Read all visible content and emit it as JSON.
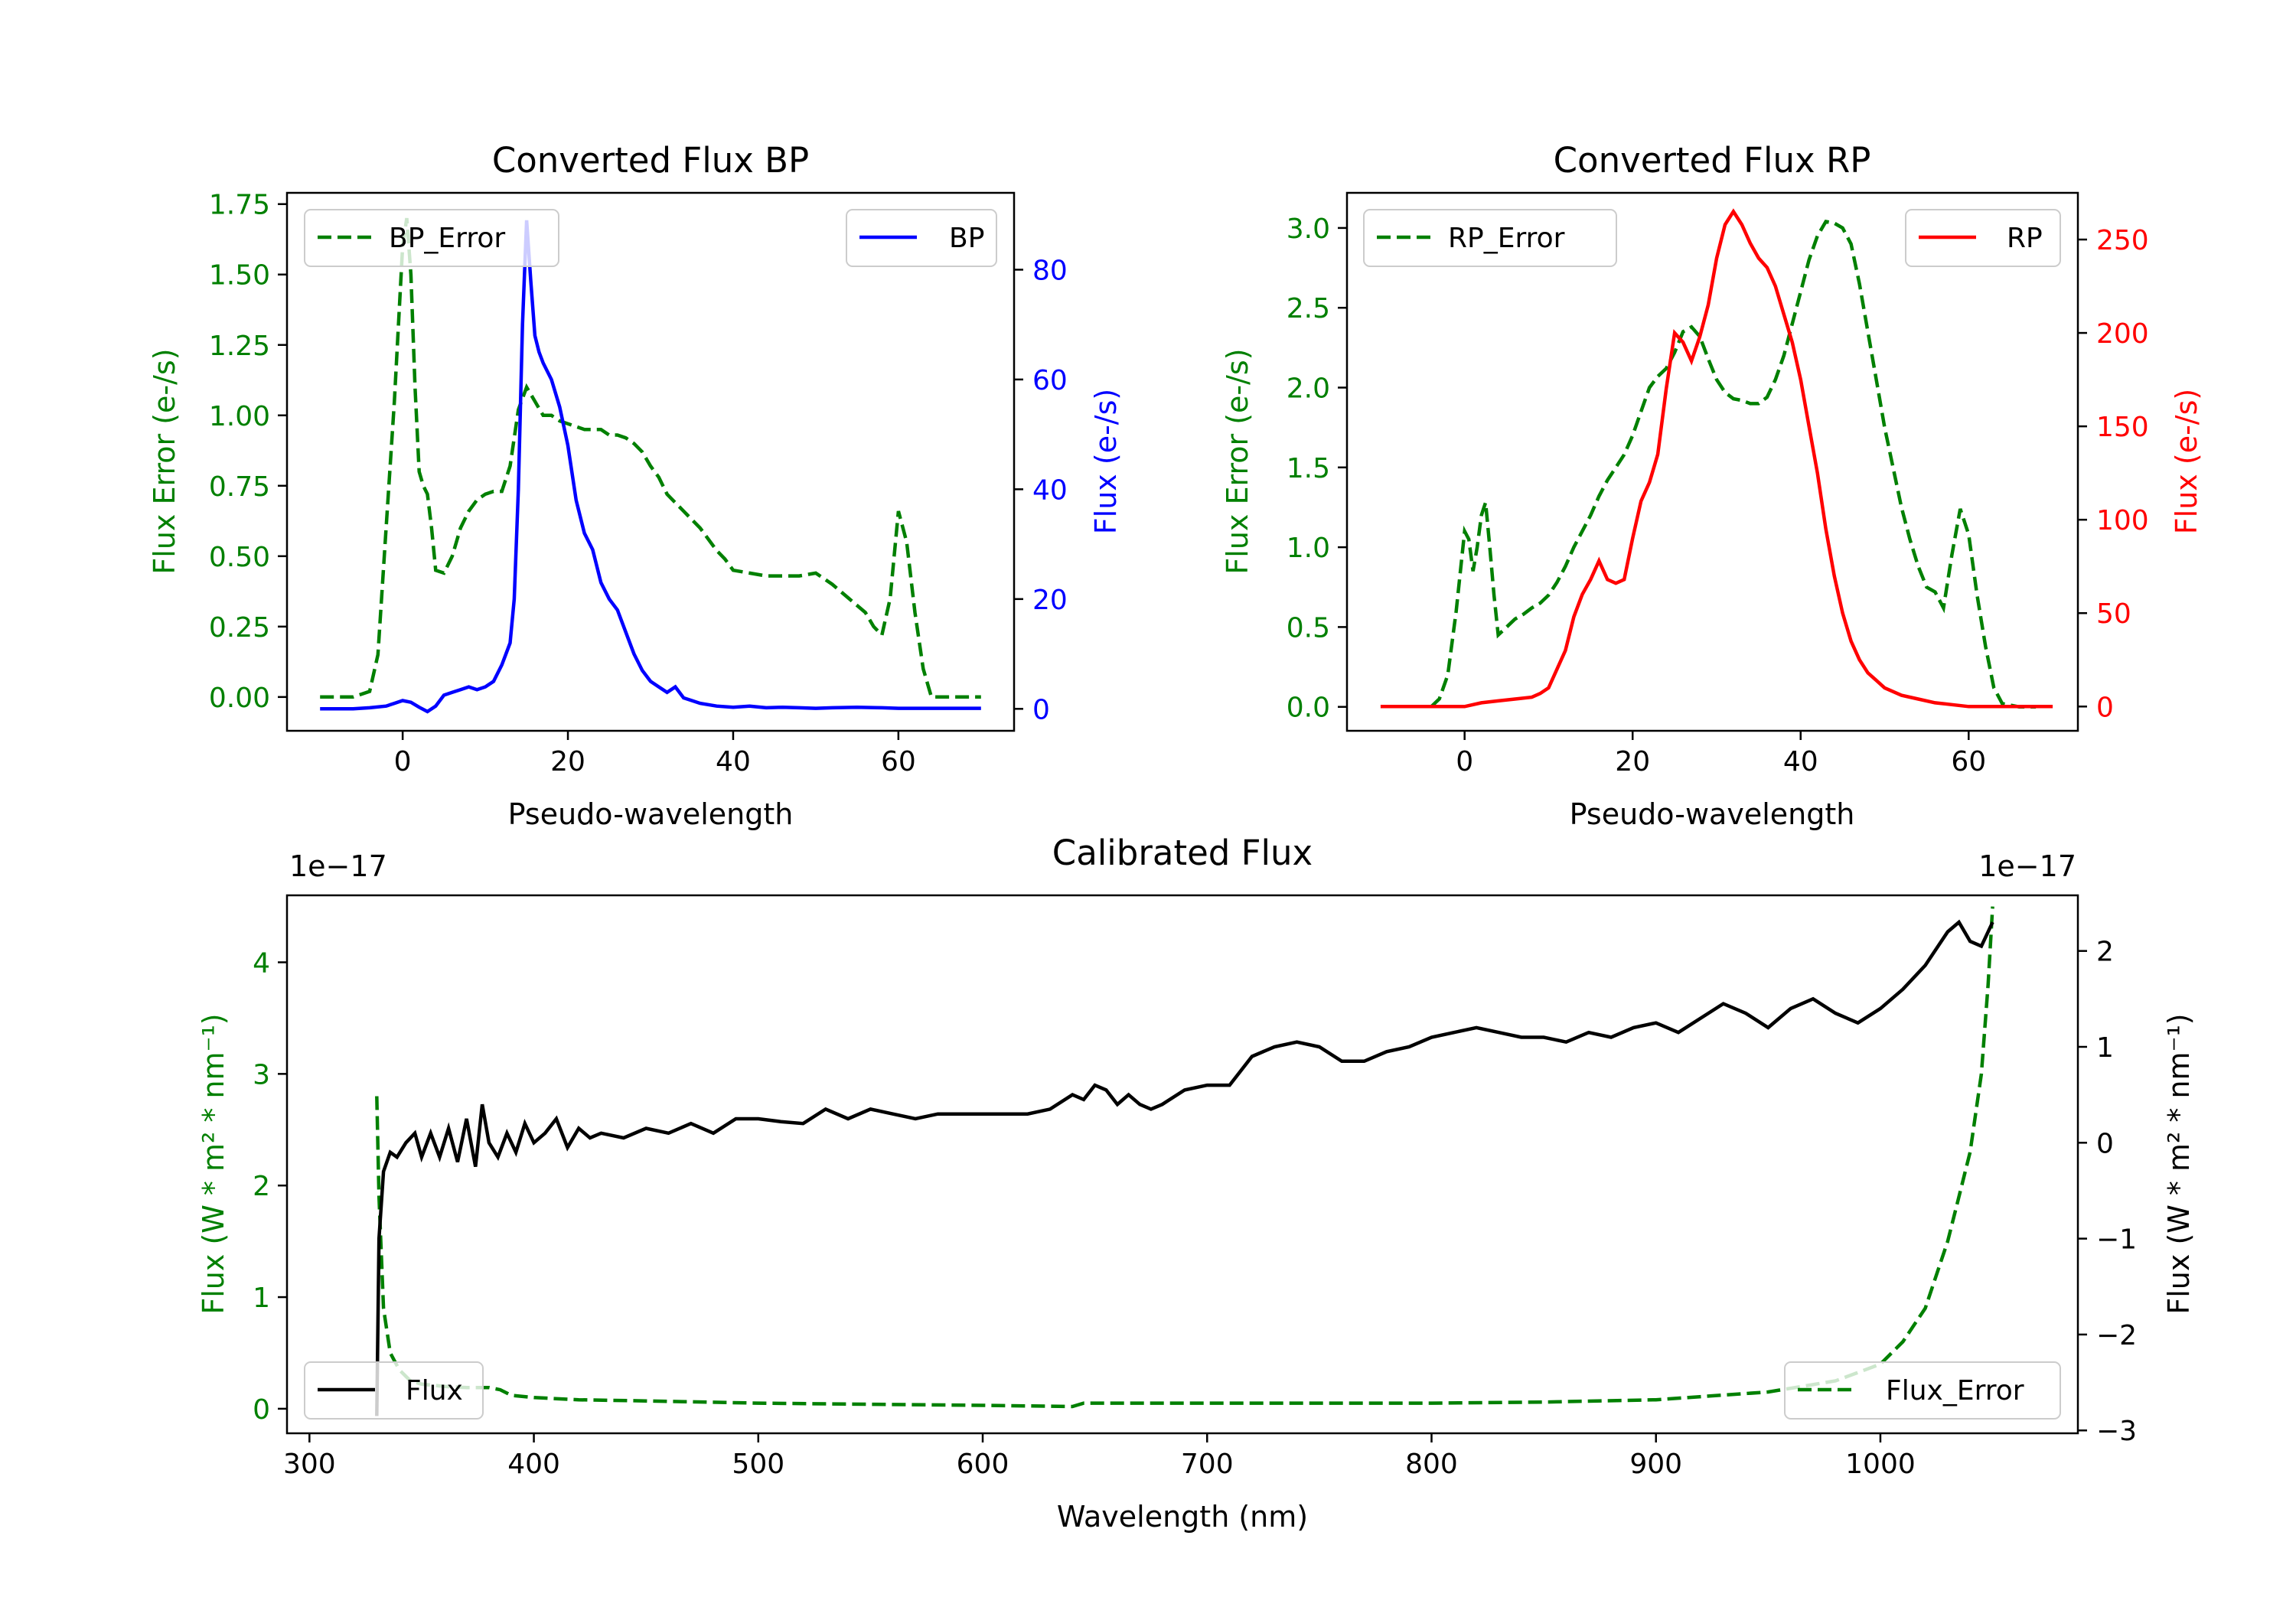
{
  "chart_data": [
    {
      "id": "bp",
      "type": "line",
      "title": "Converted Flux BP",
      "xlabel": "Pseudo-wavelength",
      "ylabel_left": "Flux Error (e-/s)",
      "ylabel_right": "Flux (e-/s)",
      "xlim": [
        -14,
        74
      ],
      "ylim_left": [
        -0.12,
        1.79
      ],
      "ylim_right": [
        -4,
        94
      ],
      "x_ticks": [
        "0",
        "20",
        "40",
        "60"
      ],
      "y_ticks_left": [
        "0.00",
        "0.25",
        "0.50",
        "0.75",
        "1.00",
        "1.25",
        "1.50",
        "1.75"
      ],
      "y_ticks_right": [
        "0",
        "20",
        "40",
        "60",
        "80"
      ],
      "left_color": "#008000",
      "right_color": "#0000ff",
      "legend_left": "BP_Error",
      "legend_right": "BP",
      "series": [
        {
          "name": "BP_Error",
          "axis": "left",
          "color": "#008000",
          "dash": true,
          "x": [
            -10,
            -8,
            -6,
            -4,
            -3,
            -2,
            -1,
            0,
            0.5,
            1,
            1.5,
            2,
            2.5,
            3,
            3.5,
            4,
            5,
            6,
            7,
            8,
            9,
            10,
            11,
            12,
            13,
            14,
            15,
            16,
            17,
            18,
            19,
            20,
            21,
            22,
            23,
            24,
            25,
            26,
            27,
            28,
            29,
            30,
            31,
            32,
            33,
            34,
            35,
            36,
            37,
            38,
            39,
            40,
            42,
            44,
            46,
            48,
            50,
            52,
            54,
            56,
            57,
            58,
            59,
            60,
            61,
            62,
            63,
            64,
            66,
            68,
            70
          ],
          "y": [
            0,
            0,
            0,
            0.02,
            0.15,
            0.6,
            1.05,
            1.6,
            1.7,
            1.5,
            1.1,
            0.8,
            0.75,
            0.72,
            0.6,
            0.45,
            0.44,
            0.5,
            0.6,
            0.66,
            0.7,
            0.72,
            0.73,
            0.73,
            0.82,
            1.02,
            1.1,
            1.05,
            1.0,
            1.0,
            0.98,
            0.97,
            0.96,
            0.95,
            0.95,
            0.95,
            0.93,
            0.93,
            0.92,
            0.9,
            0.87,
            0.82,
            0.78,
            0.72,
            0.69,
            0.66,
            0.63,
            0.6,
            0.56,
            0.52,
            0.49,
            0.45,
            0.44,
            0.43,
            0.43,
            0.43,
            0.44,
            0.4,
            0.35,
            0.3,
            0.25,
            0.22,
            0.35,
            0.66,
            0.55,
            0.3,
            0.1,
            0.0,
            0,
            0,
            0
          ]
        },
        {
          "name": "BP",
          "axis": "right",
          "color": "#0000ff",
          "dash": false,
          "x": [
            -10,
            -8,
            -6,
            -4,
            -2,
            -1,
            0,
            1,
            2,
            3,
            4,
            5,
            6,
            7,
            8,
            9,
            10,
            11,
            12,
            12.5,
            13,
            13.5,
            14,
            14.5,
            15,
            15.5,
            16,
            16.5,
            17,
            18,
            19,
            20,
            21,
            22,
            23,
            24,
            25,
            26,
            27,
            28,
            29,
            30,
            31,
            32,
            33,
            34,
            35,
            36,
            38,
            40,
            42,
            44,
            46,
            48,
            50,
            52,
            55,
            58,
            60,
            62,
            65,
            70
          ],
          "y": [
            0,
            0,
            0,
            0.2,
            0.5,
            1.0,
            1.5,
            1.2,
            0.3,
            -0.5,
            0.5,
            2.5,
            3.0,
            3.5,
            4.0,
            3.5,
            4.0,
            5.0,
            8.0,
            10.0,
            12.0,
            20.0,
            40.0,
            70.0,
            89.0,
            78.0,
            68.0,
            65.0,
            63.0,
            60.0,
            55.0,
            48.0,
            38.0,
            32.0,
            29.0,
            23.0,
            20.0,
            18.0,
            14.0,
            10.0,
            7.0,
            5.0,
            4.0,
            3.0,
            4.0,
            2.0,
            1.5,
            1.0,
            0.5,
            0.3,
            0.5,
            0.2,
            0.3,
            0.2,
            0.1,
            0.2,
            0.3,
            0.2,
            0.1,
            0.1,
            0.1,
            0.1
          ]
        }
      ]
    },
    {
      "id": "rp",
      "type": "line",
      "title": "Converted Flux RP",
      "xlabel": "Pseudo-wavelength",
      "ylabel_left": "Flux Error (e-/s)",
      "ylabel_right": "Flux (e-/s)",
      "xlim": [
        -14,
        73
      ],
      "ylim_left": [
        -0.15,
        3.22
      ],
      "ylim_right": [
        -13,
        275
      ],
      "x_ticks": [
        "0",
        "20",
        "40",
        "60"
      ],
      "y_ticks_left": [
        "0.0",
        "0.5",
        "1.0",
        "1.5",
        "2.0",
        "2.5",
        "3.0"
      ],
      "y_ticks_right": [
        "0",
        "50",
        "100",
        "150",
        "200",
        "250"
      ],
      "left_color": "#008000",
      "right_color": "#ff0000",
      "legend_left": "RP_Error",
      "legend_right": "RP",
      "series": [
        {
          "name": "RP_Error",
          "axis": "left",
          "color": "#008000",
          "dash": true,
          "x": [
            -4,
            -3,
            -2,
            -1,
            0,
            0.5,
            1,
            1.5,
            2,
            2.5,
            3,
            3.5,
            4,
            5,
            6,
            7,
            8,
            9,
            10,
            11,
            12,
            13,
            14,
            15,
            16,
            17,
            18,
            19,
            20,
            21,
            22,
            23,
            24,
            25,
            26,
            27,
            28,
            29,
            30,
            31,
            32,
            33,
            34,
            35,
            36,
            37,
            38,
            39,
            40,
            41,
            42,
            43,
            44,
            45,
            46,
            47,
            48,
            49,
            50,
            51,
            52,
            53,
            54,
            55,
            56,
            57,
            58,
            59,
            60,
            61,
            62,
            63,
            64,
            66,
            68
          ],
          "y": [
            0,
            0.05,
            0.2,
            0.6,
            1.1,
            1.05,
            0.85,
            1.0,
            1.2,
            1.28,
            1.0,
            0.7,
            0.45,
            0.5,
            0.55,
            0.58,
            0.62,
            0.65,
            0.7,
            0.78,
            0.88,
            1.0,
            1.1,
            1.2,
            1.32,
            1.42,
            1.5,
            1.58,
            1.7,
            1.85,
            2.0,
            2.07,
            2.12,
            2.22,
            2.35,
            2.38,
            2.32,
            2.18,
            2.05,
            1.97,
            1.93,
            1.92,
            1.9,
            1.9,
            1.94,
            2.05,
            2.2,
            2.4,
            2.6,
            2.8,
            2.95,
            3.04,
            3.03,
            3.0,
            2.9,
            2.65,
            2.35,
            2.05,
            1.75,
            1.5,
            1.25,
            1.05,
            0.88,
            0.75,
            0.72,
            0.62,
            0.95,
            1.24,
            1.08,
            0.7,
            0.38,
            0.12,
            0.02,
            0,
            0
          ]
        },
        {
          "name": "RP",
          "axis": "right",
          "color": "#ff0000",
          "dash": false,
          "x": [
            -10,
            -6,
            -2,
            0,
            2,
            4,
            6,
            8,
            9,
            10,
            11,
            12,
            13,
            14,
            15,
            16,
            17,
            18,
            19,
            20,
            21,
            22,
            23,
            24,
            25,
            26,
            27,
            28,
            29,
            30,
            31,
            32,
            33,
            34,
            35,
            36,
            37,
            38,
            39,
            40,
            41,
            42,
            43,
            44,
            45,
            46,
            47,
            48,
            49,
            50,
            52,
            54,
            56,
            58,
            60,
            62,
            66,
            70
          ],
          "y": [
            0,
            0,
            0,
            0,
            2,
            3,
            4,
            5,
            7,
            10,
            20,
            30,
            48,
            60,
            68,
            78,
            68,
            66,
            68,
            90,
            110,
            120,
            135,
            170,
            200,
            195,
            185,
            198,
            215,
            240,
            258,
            265,
            258,
            248,
            240,
            235,
            225,
            210,
            195,
            175,
            150,
            125,
            95,
            70,
            50,
            35,
            25,
            18,
            14,
            10,
            6,
            4,
            2,
            1,
            0,
            0,
            0,
            0
          ]
        }
      ]
    },
    {
      "id": "cal",
      "type": "line",
      "title": "Calibrated Flux",
      "xlabel": "Wavelength (nm)",
      "ylabel_left": "Flux (W * m² * nm⁻¹)",
      "ylabel_right": "Flux (W * m² * nm⁻¹)",
      "offset_left": "1e−17",
      "offset_right": "1e−17",
      "xlim": [
        290,
        1088
      ],
      "ylim_left": [
        -0.22,
        4.6
      ],
      "ylim_right": [
        -3.03,
        2.58
      ],
      "x_ticks": [
        "300",
        "400",
        "500",
        "600",
        "700",
        "800",
        "900",
        "1000"
      ],
      "y_ticks_left": [
        "0",
        "1",
        "2",
        "3",
        "4"
      ],
      "y_ticks_right": [
        "−3",
        "−2",
        "−1",
        "0",
        "1",
        "2"
      ],
      "left_color": "#008000",
      "right_color": "#000000",
      "legend_left": "Flux",
      "legend_right": "Flux_Error",
      "series": [
        {
          "name": "Flux_Error",
          "axis": "left",
          "color": "#008000",
          "dash": true,
          "x": [
            330,
            331,
            333,
            336,
            340,
            345,
            350,
            360,
            370,
            380,
            385,
            390,
            400,
            420,
            450,
            500,
            550,
            600,
            640,
            645,
            700,
            800,
            850,
            900,
            950,
            980,
            1000,
            1010,
            1020,
            1030,
            1035,
            1040,
            1045,
            1048,
            1050
          ],
          "y": [
            2.8,
            1.9,
            0.9,
            0.5,
            0.35,
            0.25,
            0.22,
            0.2,
            0.19,
            0.19,
            0.17,
            0.12,
            0.1,
            0.08,
            0.07,
            0.05,
            0.04,
            0.03,
            0.02,
            0.05,
            0.05,
            0.05,
            0.06,
            0.08,
            0.15,
            0.25,
            0.4,
            0.6,
            0.9,
            1.5,
            1.9,
            2.3,
            3.0,
            3.8,
            4.5
          ]
        },
        {
          "name": "Flux",
          "axis": "right",
          "color": "#000000",
          "dash": false,
          "x": [
            330,
            331,
            333,
            336,
            339,
            343,
            347,
            350,
            354,
            358,
            362,
            366,
            370,
            374,
            377,
            380,
            384,
            388,
            392,
            396,
            400,
            405,
            410,
            415,
            420,
            425,
            430,
            440,
            450,
            460,
            470,
            480,
            490,
            500,
            510,
            520,
            530,
            540,
            550,
            560,
            570,
            580,
            590,
            600,
            610,
            620,
            630,
            640,
            645,
            650,
            655,
            660,
            665,
            670,
            675,
            680,
            690,
            700,
            710,
            720,
            730,
            740,
            750,
            760,
            770,
            780,
            790,
            800,
            810,
            820,
            830,
            840,
            850,
            860,
            870,
            880,
            890,
            900,
            910,
            920,
            930,
            940,
            950,
            960,
            970,
            980,
            990,
            1000,
            1010,
            1020,
            1030,
            1035,
            1040,
            1045,
            1050
          ],
          "y": [
            -2.85,
            -1.0,
            -0.3,
            -0.1,
            -0.15,
            0.0,
            0.1,
            -0.15,
            0.1,
            -0.15,
            0.15,
            -0.2,
            0.25,
            -0.25,
            0.4,
            0.0,
            -0.15,
            0.1,
            -0.1,
            0.2,
            0.0,
            0.1,
            0.25,
            -0.05,
            0.15,
            0.05,
            0.1,
            0.05,
            0.15,
            0.1,
            0.2,
            0.1,
            0.25,
            0.25,
            0.22,
            0.2,
            0.35,
            0.25,
            0.35,
            0.3,
            0.25,
            0.3,
            0.3,
            0.3,
            0.3,
            0.3,
            0.35,
            0.5,
            0.45,
            0.6,
            0.55,
            0.4,
            0.5,
            0.4,
            0.35,
            0.4,
            0.55,
            0.6,
            0.6,
            0.9,
            1.0,
            1.05,
            1.0,
            0.85,
            0.85,
            0.95,
            1.0,
            1.1,
            1.15,
            1.2,
            1.15,
            1.1,
            1.1,
            1.05,
            1.15,
            1.1,
            1.2,
            1.25,
            1.15,
            1.3,
            1.45,
            1.35,
            1.2,
            1.4,
            1.5,
            1.35,
            1.25,
            1.4,
            1.6,
            1.85,
            2.2,
            2.3,
            2.1,
            2.05,
            2.3
          ]
        }
      ]
    }
  ]
}
